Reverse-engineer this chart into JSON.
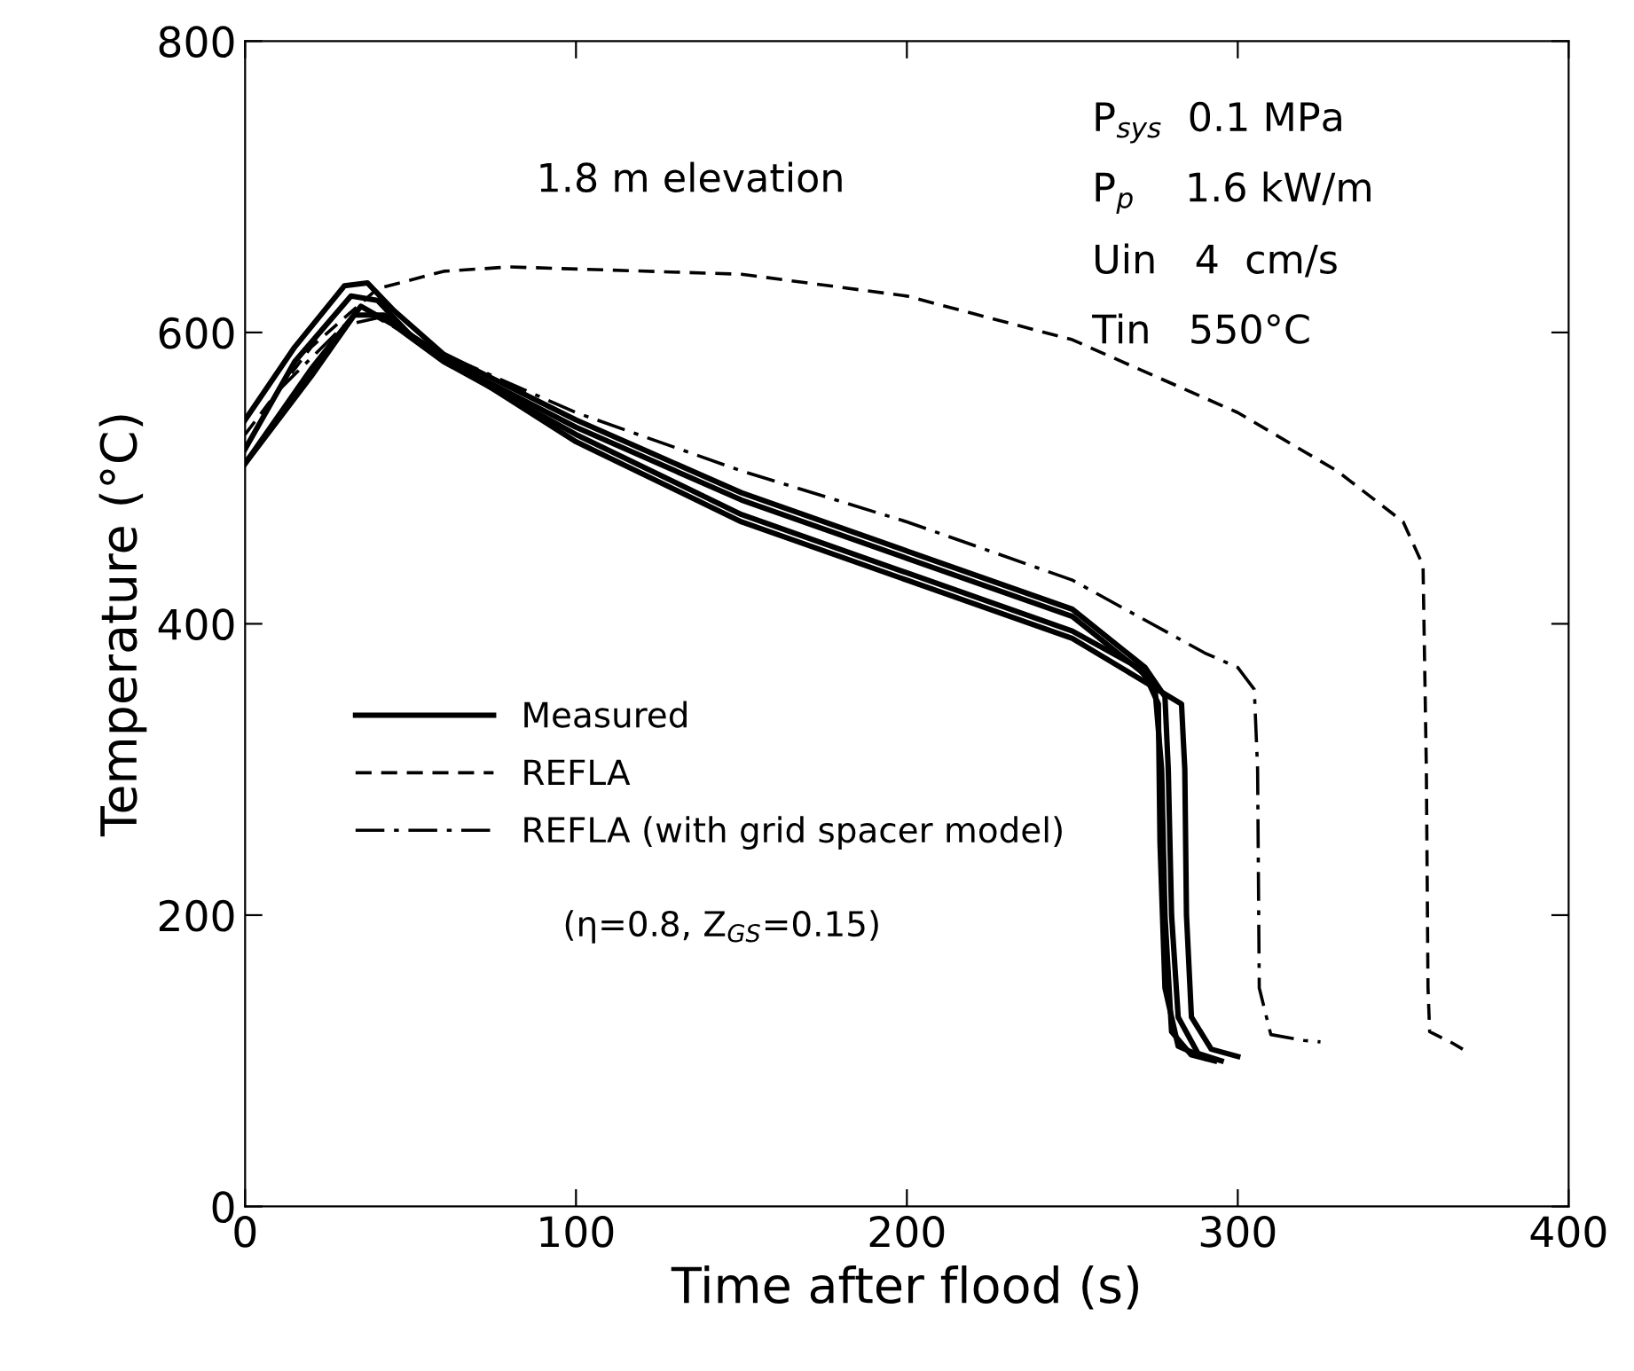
{
  "chart_data": {
    "type": "line",
    "xlabel": "Time after flood (s)",
    "ylabel": "Temperature (°C)",
    "xlim": [
      0,
      400
    ],
    "ylim": [
      0,
      800
    ],
    "xticks": [
      0,
      100,
      200,
      300,
      400
    ],
    "yticks": [
      0,
      200,
      400,
      600,
      800
    ],
    "grid": false,
    "legend": "left",
    "marker": "none",
    "annotations": [
      "1.8 m elevation",
      "P$_{sys}$  0.1 MPa",
      "P$_{p}$    1.6 kW/m",
      "Uin   4  cm/s",
      "Tin   550°C",
      "(η=0.8, Z$_{GS}$=0.15)"
    ],
    "series": [
      {
        "name": "Measured",
        "color": "#000000",
        "line_style": "solid",
        "x": [
          0,
          15,
          30,
          37,
          45,
          60,
          100,
          150,
          200,
          250,
          272,
          278,
          279,
          280,
          282,
          288,
          295
        ],
        "values": [
          540,
          590,
          632,
          634,
          615,
          585,
          540,
          490,
          450,
          410,
          370,
          350,
          300,
          200,
          130,
          105,
          100
        ]
      },
      {
        "color": "#000000",
        "line_style": "solid",
        "x": [
          0,
          15,
          32,
          40,
          50,
          70,
          100,
          150,
          200,
          250,
          272,
          276,
          276.5,
          278,
          282,
          290
        ],
        "values": [
          520,
          580,
          625,
          622,
          598,
          570,
          535,
          485,
          445,
          405,
          365,
          345,
          250,
          150,
          110,
          102
        ]
      },
      {
        "color": "#000000",
        "line_style": "solid",
        "x": [
          0,
          20,
          35,
          45,
          60,
          100,
          150,
          200,
          250,
          270,
          275,
          277,
          278,
          280,
          286,
          293
        ],
        "values": [
          510,
          575,
          618,
          605,
          580,
          530,
          475,
          435,
          395,
          370,
          355,
          300,
          200,
          120,
          104,
          100
        ]
      },
      {
        "color": "#000000",
        "line_style": "solid",
        "x": [
          0,
          20,
          33,
          42,
          55,
          100,
          150,
          200,
          250,
          272,
          283,
          284,
          284.5,
          286,
          292,
          300
        ],
        "values": [
          510,
          570,
          612,
          612,
          590,
          525,
          470,
          430,
          390,
          360,
          345,
          300,
          200,
          130,
          108,
          103
        ]
      },
      {
        "name": "REFLA",
        "color": "#000000",
        "line_style": "dashed",
        "x": [
          0,
          20,
          40,
          60,
          80,
          150,
          200,
          250,
          300,
          330,
          350,
          356,
          357,
          357.5,
          358,
          365,
          368
        ],
        "values": [
          530,
          590,
          630,
          642,
          645,
          640,
          625,
          595,
          545,
          505,
          470,
          440,
          300,
          150,
          120,
          112,
          108
        ]
      },
      {
        "name": "REFLA (with grid spacer model)",
        "color": "#000000",
        "line_style": "dashdot",
        "x": [
          10,
          30,
          40,
          60,
          100,
          150,
          200,
          250,
          290,
          300,
          305,
          306,
          306.5,
          310,
          320,
          325
        ],
        "values": [
          560,
          605,
          610,
          585,
          545,
          505,
          470,
          430,
          380,
          370,
          355,
          300,
          150,
          118,
          114,
          113
        ]
      }
    ]
  }
}
